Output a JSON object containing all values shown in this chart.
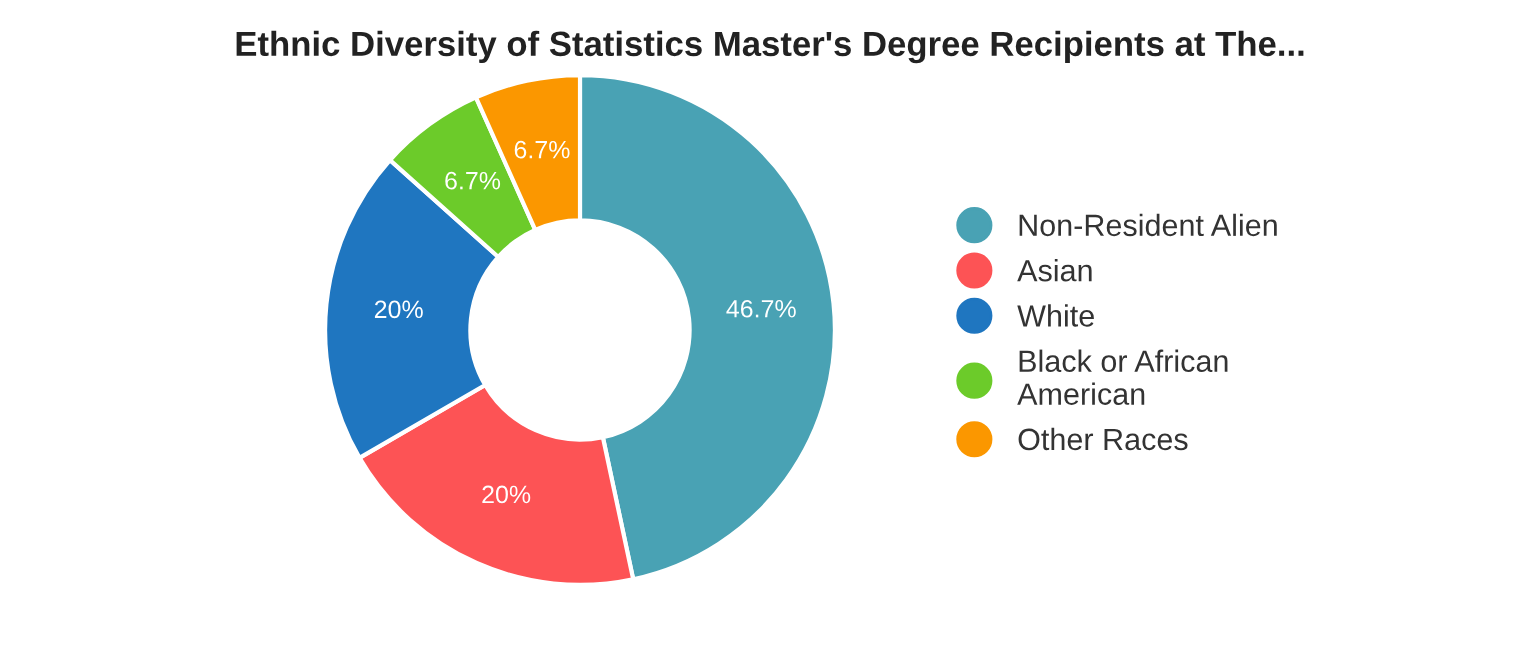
{
  "chart_data": {
    "type": "donut",
    "title": "Ethnic Diversity of Statistics Master's Degree Recipients at The...",
    "categories": [
      "Non-Resident Alien",
      "Asian",
      "White",
      "Black or African\nAmerican",
      "Other Races"
    ],
    "values": [
      46.7,
      20,
      20,
      6.7,
      6.7
    ],
    "colors": [
      "#49a2b4",
      "#fd5355",
      "#1f76c0",
      "#6ccb2a",
      "#fb9700"
    ],
    "value_labels": [
      "46.7%",
      "20%",
      "20%",
      "6.7%",
      "6.7%"
    ],
    "legend": "right"
  }
}
